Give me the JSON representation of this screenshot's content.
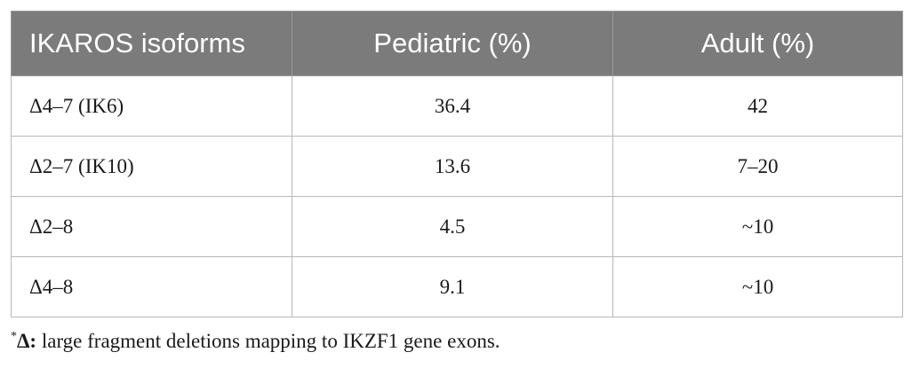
{
  "table": {
    "headers": [
      "IKAROS isoforms",
      "Pediatric (%)",
      "Adult (%)"
    ],
    "rows": [
      [
        "Δ4–7 (IK6)",
        "36.4",
        "42"
      ],
      [
        "Δ2–7 (IK10)",
        "13.6",
        "7–20"
      ],
      [
        "Δ2–8",
        "4.5",
        "~10"
      ],
      [
        "Δ4–8",
        "9.1",
        "~10"
      ]
    ]
  },
  "footnote": {
    "marker": "*",
    "symbol": "Δ:",
    "text": " large fragment deletions mapping to IKZF1 gene exons."
  },
  "colors": {
    "header_bg": "#7b7b7b",
    "header_text": "#ffffff",
    "grid": "#b8b8b8"
  }
}
